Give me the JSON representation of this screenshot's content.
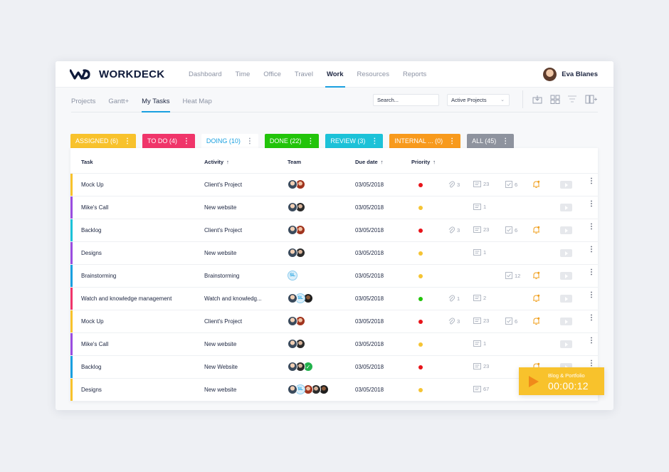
{
  "app": {
    "logo_text": "WORKDECK"
  },
  "nav": {
    "items": [
      "Dashboard",
      "Time",
      "Office",
      "Travel",
      "Work",
      "Resources",
      "Reports"
    ],
    "active": "Work"
  },
  "user": {
    "name": "Eva Blanes"
  },
  "subnav": {
    "items": [
      "Projects",
      "Gantt+",
      "My Tasks",
      "Heat Map"
    ],
    "active": "My Tasks"
  },
  "search": {
    "placeholder": "Search..."
  },
  "filter": {
    "selected": "Active Projects"
  },
  "tabs": [
    {
      "label": "ASSIGNED (6)",
      "color": "#f8c22c"
    },
    {
      "label": "TO DO (4)",
      "color": "#f0356a"
    },
    {
      "label": "DOING (10)",
      "color": "#ffffff"
    },
    {
      "label": "DONE (22)",
      "color": "#22c40a"
    },
    {
      "label": "REVIEW (3)",
      "color": "#1cc2d8"
    },
    {
      "label": "INTERNAL ... (0)",
      "color": "#f89a1c"
    },
    {
      "label": "ALL (45)",
      "color": "#8e939e"
    }
  ],
  "table": {
    "headers": {
      "task": "Task",
      "activity": "Activity",
      "team": "Team",
      "due": "Due date",
      "priority": "Priority"
    },
    "rows": [
      {
        "task": "Mock Up",
        "activity": "Client's Project",
        "due": "03/05/2018",
        "bar": "#f8c22c",
        "priority": "#e8141a",
        "team": [
          "a1",
          "a2"
        ],
        "attach": "3",
        "comments": "23",
        "checks": "6",
        "bell": true
      },
      {
        "task": "Mike's Call",
        "activity": "New website",
        "due": "03/05/2018",
        "bar": "#9a4de0",
        "priority": "#f5c434",
        "team": [
          "a1",
          "a3"
        ],
        "attach": "",
        "comments": "1",
        "checks": "",
        "bell": false
      },
      {
        "task": "Backlog",
        "activity": "Client's Project",
        "due": "03/05/2018",
        "bar": "#1cc2d8",
        "priority": "#e8141a",
        "team": [
          "a1",
          "a2"
        ],
        "attach": "3",
        "comments": "23",
        "checks": "6",
        "bell": true
      },
      {
        "task": "Designs",
        "activity": "New website",
        "due": "03/05/2018",
        "bar": "#9a4de0",
        "priority": "#f5c434",
        "team": [
          "a1",
          "a3"
        ],
        "attach": "",
        "comments": "1",
        "checks": "",
        "bell": false
      },
      {
        "task": "Brainstorming",
        "activity": "Brainstorming",
        "due": "03/05/2018",
        "bar": "#1aa0e0",
        "priority": "#f5c434",
        "team": [
          "SL"
        ],
        "attach": "",
        "comments": "",
        "checks": "12",
        "bell": true
      },
      {
        "task": "Watch and knowledge management",
        "activity": "Watch and knowledg...",
        "due": "03/05/2018",
        "bar": "#f0356a",
        "priority": "#22c40a",
        "team": [
          "a1",
          "SL",
          "a4"
        ],
        "attach": "1",
        "comments": "2",
        "checks": "",
        "bell": true
      },
      {
        "task": "Mock Up",
        "activity": "Client's Project",
        "due": "03/05/2018",
        "bar": "#f8c22c",
        "priority": "#e8141a",
        "team": [
          "a1",
          "a2"
        ],
        "attach": "3",
        "comments": "23",
        "checks": "6",
        "bell": true
      },
      {
        "task": "Mike's Call",
        "activity": "New website",
        "due": "03/05/2018",
        "bar": "#9a4de0",
        "priority": "#f5c434",
        "team": [
          "a1",
          "a3"
        ],
        "attach": "",
        "comments": "1",
        "checks": "",
        "bell": false
      },
      {
        "task": "Backlog",
        "activity": "New Website",
        "due": "03/05/2018",
        "bar": "#1aa0e0",
        "priority": "#e8141a",
        "team": [
          "a1",
          "a3",
          "chk"
        ],
        "attach": "",
        "comments": "23",
        "checks": "",
        "bell": true
      },
      {
        "task": "Designs",
        "activity": "New website",
        "due": "03/05/2018",
        "bar": "#f8c22c",
        "priority": "#f5c434",
        "team": [
          "a1",
          "SL",
          "a2",
          "a3",
          "a4"
        ],
        "attach": "",
        "comments": "67",
        "checks": "",
        "bell": false
      }
    ]
  },
  "timer": {
    "label": "Blog & Portfolio",
    "time": "00:00:12"
  }
}
